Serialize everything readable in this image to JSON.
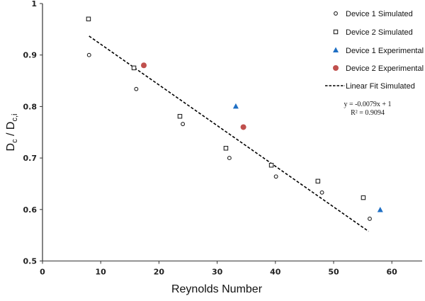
{
  "chart_data": {
    "type": "scatter",
    "title": "",
    "xlabel": "Reynolds Number",
    "ylabel": "D_c / D_c,i",
    "ylabel_main": "D",
    "ylabel_sub1": "c",
    "ylabel_sep": " / D",
    "ylabel_sub2": "c,i",
    "xlim": [
      0,
      65
    ],
    "ylim": [
      0.5,
      1
    ],
    "x_ticks": [
      0,
      10,
      20,
      30,
      40,
      50,
      60
    ],
    "y_ticks": [
      0.5,
      0.6,
      0.7,
      0.8,
      0.9,
      1
    ],
    "y_tick_labels": [
      "0.5",
      "0.6",
      "0.7",
      "0.8",
      "0.9",
      "1"
    ],
    "grid": false,
    "legend_position": "upper right",
    "series": [
      {
        "name": "Device 1 Simulated",
        "marker": "open-circle",
        "color": "#222222",
        "x": [
          8.0,
          16.1,
          24.1,
          32.1,
          40.1,
          48.0,
          56.2
        ],
        "y": [
          0.9,
          0.834,
          0.766,
          0.7,
          0.664,
          0.633,
          0.582
        ]
      },
      {
        "name": "Device 2 Simulated",
        "marker": "open-square",
        "color": "#222222",
        "x": [
          7.9,
          15.7,
          23.6,
          31.5,
          39.3,
          47.3,
          55.1
        ],
        "y": [
          0.97,
          0.875,
          0.781,
          0.719,
          0.686,
          0.655,
          0.623
        ]
      },
      {
        "name": "Device 1 Experimental",
        "marker": "filled-triangle",
        "color": "#1f6fc4",
        "x": [
          33.2,
          58.0
        ],
        "y": [
          0.8,
          0.599
        ]
      },
      {
        "name": "Device 2 Experimental",
        "marker": "filled-circle",
        "color": "#c0504d",
        "x": [
          17.4,
          34.5
        ],
        "y": [
          0.88,
          0.76
        ]
      }
    ],
    "fit": {
      "name": "Linear Fit Simulated",
      "style": "dashed",
      "color": "#000000",
      "slope": -0.0079,
      "intercept": 1,
      "x_range": [
        8,
        56
      ],
      "equation": "y = -0.0079x + 1",
      "r_squared": "R² = 0.9094"
    }
  }
}
